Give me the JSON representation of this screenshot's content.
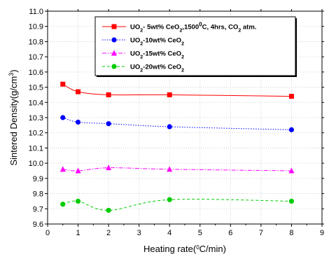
{
  "chart_data": {
    "type": "line",
    "title": "",
    "xlabel": "Heating rate(°C/min)",
    "ylabel": "Sintered Density(g/cm³)",
    "xlim": [
      0,
      9
    ],
    "ylim": [
      9.6,
      11.0
    ],
    "x_ticks": [
      "0",
      "1",
      "2",
      "3",
      "4",
      "5",
      "6",
      "7",
      "8",
      "9"
    ],
    "y_ticks": [
      "9.6",
      "9.7",
      "9.8",
      "9.9",
      "10.0",
      "10.1",
      "10.2",
      "10.3",
      "10.4",
      "10.5",
      "10.6",
      "10.7",
      "10.8",
      "10.9",
      "11.0"
    ],
    "grid": true,
    "legend_position": "top-center",
    "x": [
      0.5,
      1,
      2,
      4,
      8
    ],
    "series": [
      {
        "name": "UO2- 5wt% CeO2,1500°C, 4hrs, CO2 atm.",
        "values": [
          10.52,
          10.47,
          10.45,
          10.45,
          10.44
        ],
        "color": "#ff0000",
        "marker": "square",
        "line": "solid"
      },
      {
        "name": "UO2-10wt% CeO2",
        "values": [
          10.3,
          10.27,
          10.26,
          10.24,
          10.22
        ],
        "color": "#0000ff",
        "marker": "circle",
        "line": "dotted"
      },
      {
        "name": "UO2-15wt% CeO2",
        "values": [
          9.96,
          9.95,
          9.97,
          9.96,
          9.95
        ],
        "color": "#ff00ff",
        "marker": "triangle",
        "line": "dash-dot"
      },
      {
        "name": "UO2-20wt% CeO2",
        "values": [
          9.73,
          9.75,
          9.69,
          9.76,
          9.75
        ],
        "color": "#00cc00",
        "marker": "circle",
        "line": "dashed"
      }
    ]
  }
}
